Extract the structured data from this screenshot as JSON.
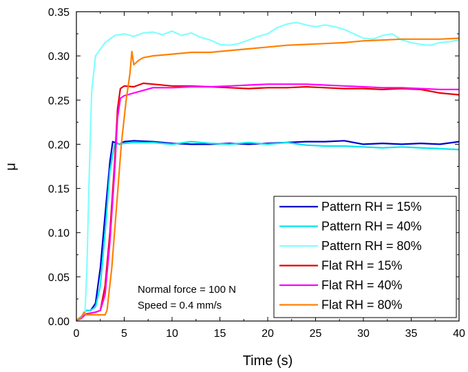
{
  "chart_data": {
    "type": "line",
    "xlabel": "Time (s)",
    "ylabel": "μ",
    "xlim": [
      0,
      40
    ],
    "ylim": [
      0,
      0.35
    ],
    "x_ticks": [
      0,
      5,
      10,
      15,
      20,
      25,
      30,
      35,
      40
    ],
    "y_ticks": [
      "0.00",
      "0.05",
      "0.10",
      "0.15",
      "0.20",
      "0.25",
      "0.30",
      "0.35"
    ],
    "grid": false,
    "legend_position": "bottom-right",
    "annotations": [
      "Normal force = 100 N",
      "Speed = 0.4 mm/s"
    ],
    "series": [
      {
        "name": "Pattern RH = 15%",
        "color": "#0000cc",
        "points": [
          [
            0,
            0.001
          ],
          [
            0.5,
            0.004
          ],
          [
            1,
            0.012
          ],
          [
            1.5,
            0.012
          ],
          [
            2,
            0.02
          ],
          [
            2.5,
            0.06
          ],
          [
            3,
            0.12
          ],
          [
            3.5,
            0.18
          ],
          [
            3.8,
            0.203
          ],
          [
            4.5,
            0.2
          ],
          [
            5,
            0.203
          ],
          [
            6,
            0.204
          ],
          [
            8,
            0.203
          ],
          [
            10,
            0.201
          ],
          [
            12,
            0.2
          ],
          [
            14,
            0.2
          ],
          [
            16,
            0.201
          ],
          [
            18,
            0.2
          ],
          [
            20,
            0.201
          ],
          [
            22,
            0.202
          ],
          [
            24,
            0.203
          ],
          [
            26,
            0.203
          ],
          [
            28,
            0.204
          ],
          [
            30,
            0.2
          ],
          [
            32,
            0.201
          ],
          [
            34,
            0.2
          ],
          [
            36,
            0.201
          ],
          [
            38,
            0.2
          ],
          [
            40,
            0.203
          ]
        ]
      },
      {
        "name": "Pattern RH = 40%",
        "color": "#00e5ee",
        "points": [
          [
            0,
            0.001
          ],
          [
            0.5,
            0.005
          ],
          [
            1,
            0.012
          ],
          [
            1.5,
            0.012
          ],
          [
            2,
            0.016
          ],
          [
            2.5,
            0.04
          ],
          [
            3,
            0.1
          ],
          [
            3.5,
            0.17
          ],
          [
            4,
            0.2
          ],
          [
            5,
            0.201
          ],
          [
            6,
            0.202
          ],
          [
            8,
            0.202
          ],
          [
            10,
            0.2
          ],
          [
            12,
            0.203
          ],
          [
            14,
            0.201
          ],
          [
            16,
            0.2
          ],
          [
            18,
            0.202
          ],
          [
            20,
            0.2
          ],
          [
            22,
            0.202
          ],
          [
            24,
            0.199
          ],
          [
            26,
            0.198
          ],
          [
            28,
            0.198
          ],
          [
            30,
            0.197
          ],
          [
            32,
            0.196
          ],
          [
            34,
            0.197
          ],
          [
            36,
            0.196
          ],
          [
            38,
            0.195
          ],
          [
            40,
            0.194
          ]
        ]
      },
      {
        "name": "Pattern RH = 80%",
        "color": "#80ffff",
        "points": [
          [
            0,
            0.001
          ],
          [
            0.5,
            0.004
          ],
          [
            0.9,
            0.01
          ],
          [
            1.1,
            0.06
          ],
          [
            1.3,
            0.15
          ],
          [
            1.6,
            0.26
          ],
          [
            2,
            0.3
          ],
          [
            3,
            0.315
          ],
          [
            4,
            0.323
          ],
          [
            5,
            0.325
          ],
          [
            6,
            0.322
          ],
          [
            7,
            0.326
          ],
          [
            8,
            0.327
          ],
          [
            9,
            0.324
          ],
          [
            10,
            0.328
          ],
          [
            11,
            0.323
          ],
          [
            12,
            0.326
          ],
          [
            13,
            0.321
          ],
          [
            14,
            0.318
          ],
          [
            15,
            0.313
          ],
          [
            16,
            0.312
          ],
          [
            17,
            0.314
          ],
          [
            18,
            0.318
          ],
          [
            19,
            0.322
          ],
          [
            20,
            0.325
          ],
          [
            21,
            0.332
          ],
          [
            22,
            0.336
          ],
          [
            23,
            0.338
          ],
          [
            24,
            0.335
          ],
          [
            25,
            0.333
          ],
          [
            26,
            0.335
          ],
          [
            27,
            0.333
          ],
          [
            28,
            0.33
          ],
          [
            29,
            0.325
          ],
          [
            30,
            0.32
          ],
          [
            31,
            0.319
          ],
          [
            32,
            0.323
          ],
          [
            33,
            0.325
          ],
          [
            34,
            0.318
          ],
          [
            35,
            0.315
          ],
          [
            36,
            0.313
          ],
          [
            37,
            0.312
          ],
          [
            38,
            0.315
          ],
          [
            39,
            0.316
          ],
          [
            40,
            0.318
          ]
        ]
      },
      {
        "name": "Flat RH = 15%",
        "color": "#e60000",
        "points": [
          [
            0,
            0.001
          ],
          [
            0.5,
            0.003
          ],
          [
            1,
            0.008
          ],
          [
            2,
            0.01
          ],
          [
            2.5,
            0.012
          ],
          [
            3,
            0.04
          ],
          [
            3.5,
            0.1
          ],
          [
            4,
            0.18
          ],
          [
            4.3,
            0.24
          ],
          [
            4.6,
            0.263
          ],
          [
            5,
            0.266
          ],
          [
            6,
            0.265
          ],
          [
            7,
            0.269
          ],
          [
            8,
            0.268
          ],
          [
            10,
            0.266
          ],
          [
            12,
            0.266
          ],
          [
            14,
            0.265
          ],
          [
            16,
            0.264
          ],
          [
            18,
            0.263
          ],
          [
            20,
            0.264
          ],
          [
            22,
            0.264
          ],
          [
            24,
            0.265
          ],
          [
            26,
            0.264
          ],
          [
            28,
            0.263
          ],
          [
            30,
            0.263
          ],
          [
            32,
            0.262
          ],
          [
            34,
            0.263
          ],
          [
            36,
            0.262
          ],
          [
            38,
            0.258
          ],
          [
            40,
            0.256
          ]
        ]
      },
      {
        "name": "Flat RH = 40%",
        "color": "#ff00ff",
        "points": [
          [
            0,
            0.001
          ],
          [
            0.5,
            0.003
          ],
          [
            1,
            0.008
          ],
          [
            2,
            0.01
          ],
          [
            2.5,
            0.012
          ],
          [
            3,
            0.03
          ],
          [
            3.5,
            0.09
          ],
          [
            4,
            0.17
          ],
          [
            4.3,
            0.23
          ],
          [
            4.6,
            0.252
          ],
          [
            5,
            0.255
          ],
          [
            6,
            0.258
          ],
          [
            7,
            0.261
          ],
          [
            8,
            0.264
          ],
          [
            10,
            0.264
          ],
          [
            12,
            0.265
          ],
          [
            14,
            0.265
          ],
          [
            16,
            0.266
          ],
          [
            18,
            0.267
          ],
          [
            20,
            0.268
          ],
          [
            22,
            0.268
          ],
          [
            24,
            0.268
          ],
          [
            26,
            0.267
          ],
          [
            28,
            0.266
          ],
          [
            30,
            0.265
          ],
          [
            32,
            0.264
          ],
          [
            34,
            0.264
          ],
          [
            36,
            0.263
          ],
          [
            38,
            0.262
          ],
          [
            40,
            0.262
          ]
        ]
      },
      {
        "name": "Flat RH = 80%",
        "color": "#ff8000",
        "points": [
          [
            0,
            0.001
          ],
          [
            0.5,
            0.004
          ],
          [
            0.8,
            0.01
          ],
          [
            1,
            0.007
          ],
          [
            2,
            0.007
          ],
          [
            3,
            0.007
          ],
          [
            3.2,
            0.012
          ],
          [
            3.7,
            0.06
          ],
          [
            4.2,
            0.13
          ],
          [
            4.7,
            0.2
          ],
          [
            5.2,
            0.25
          ],
          [
            5.6,
            0.28
          ],
          [
            5.8,
            0.305
          ],
          [
            6,
            0.29
          ],
          [
            6.5,
            0.295
          ],
          [
            7,
            0.298
          ],
          [
            8,
            0.3
          ],
          [
            10,
            0.302
          ],
          [
            12,
            0.304
          ],
          [
            14,
            0.304
          ],
          [
            16,
            0.306
          ],
          [
            18,
            0.308
          ],
          [
            20,
            0.31
          ],
          [
            22,
            0.312
          ],
          [
            24,
            0.313
          ],
          [
            26,
            0.314
          ],
          [
            28,
            0.315
          ],
          [
            30,
            0.317
          ],
          [
            32,
            0.318
          ],
          [
            34,
            0.319
          ],
          [
            36,
            0.319
          ],
          [
            38,
            0.319
          ],
          [
            40,
            0.32
          ]
        ]
      }
    ]
  }
}
